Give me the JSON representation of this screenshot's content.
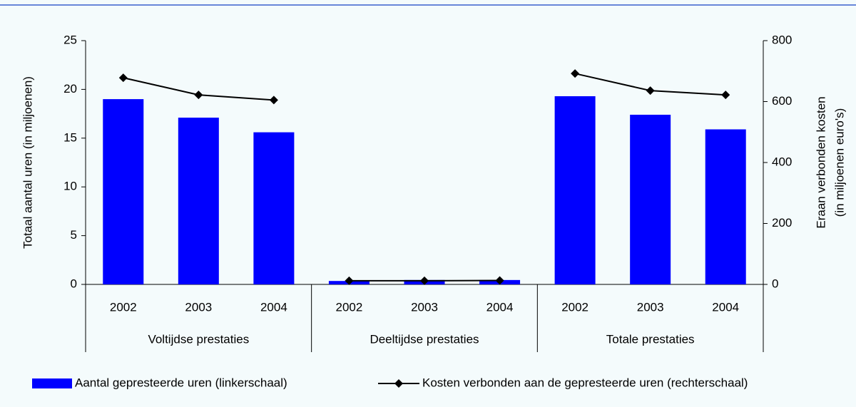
{
  "chart_data": {
    "type": "bar-line",
    "groups": [
      {
        "name": "Voltijdse prestaties",
        "categories": [
          "2002",
          "2003",
          "2004"
        ]
      },
      {
        "name": "Deeltijdse prestaties",
        "categories": [
          "2002",
          "2003",
          "2004"
        ]
      },
      {
        "name": "Totale prestaties",
        "categories": [
          "2002",
          "2003",
          "2004"
        ]
      }
    ],
    "series": [
      {
        "name": "Aantal gepresteerde uren (linkerschaal)",
        "type": "bar",
        "color": "#0000ff",
        "axis": "y",
        "values": [
          19.0,
          17.1,
          15.6,
          0.35,
          0.45,
          0.45,
          19.3,
          17.4,
          15.9
        ]
      },
      {
        "name": "Kosten verbonden aan de gepresteerde uren (rechterschaal)",
        "type": "line",
        "color": "#000000",
        "axis": "y2",
        "values": [
          678,
          622,
          605,
          12,
          12,
          13,
          692,
          636,
          622
        ]
      }
    ],
    "ylabel": "Totaal aantal uren (in miljoenen)",
    "y2label": [
      "Eraan verbonden kosten",
      "(in miljoenen euro's)"
    ],
    "ylim": [
      0,
      25
    ],
    "yticks": [
      0,
      5,
      10,
      15,
      20,
      25
    ],
    "y2lim": [
      0,
      800
    ],
    "y2ticks": [
      0,
      200,
      400,
      600,
      800
    ],
    "legend": "bottom"
  }
}
